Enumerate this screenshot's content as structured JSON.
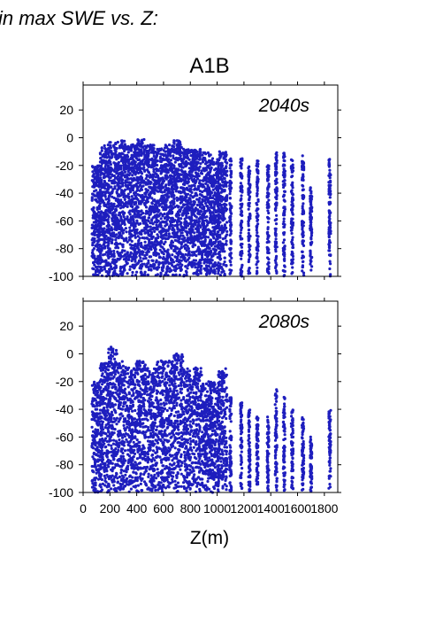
{
  "header": {
    "text": "in max SWE vs. Z:"
  },
  "scenario": "A1B",
  "xlabel": "Z(m)",
  "colors": {
    "points": "#1e1ebe",
    "label": "#1e1ebe",
    "axes": "#000000"
  },
  "chart_data": [
    {
      "type": "scatter",
      "label": "2040s",
      "xlim": [
        0,
        1900
      ],
      "ylim": [
        -100,
        38
      ],
      "yticks": [
        20,
        0,
        -20,
        -40,
        -60,
        -80,
        -100
      ],
      "xtick_values": [
        0,
        200,
        400,
        600,
        800,
        1000,
        1200,
        1400,
        1600,
        1800
      ],
      "x_cluster_centers": [
        100,
        160,
        220,
        290,
        360,
        430,
        500,
        570,
        640,
        710,
        780,
        850,
        920,
        980,
        1040,
        1100,
        1180,
        1240,
        1300,
        1380,
        1440,
        1500,
        1560,
        1640,
        1700,
        1840
      ],
      "upper_envelope": [
        -20,
        -5,
        -3,
        -2,
        -5,
        -1,
        -5,
        -8,
        -5,
        -2,
        -8,
        -8,
        -10,
        -15,
        -10,
        -15,
        -15,
        -20,
        -15,
        -20,
        -10,
        -10,
        -15,
        -10,
        -35,
        -15
      ],
      "lower_bound": -100,
      "n_points_approx": 5000
    },
    {
      "type": "scatter",
      "label": "2080s",
      "xlim": [
        0,
        1900
      ],
      "ylim": [
        -100,
        38
      ],
      "yticks": [
        20,
        0,
        -20,
        -40,
        -60,
        -80,
        -100
      ],
      "xtick_labels": [
        "0",
        "200",
        "400",
        "600",
        "800",
        "1000",
        "1200",
        "1400",
        "1600",
        "1800"
      ],
      "xtick_values": [
        0,
        200,
        400,
        600,
        800,
        1000,
        1200,
        1400,
        1600,
        1800
      ],
      "x_cluster_centers": [
        100,
        160,
        220,
        290,
        360,
        430,
        500,
        570,
        640,
        710,
        780,
        850,
        920,
        980,
        1040,
        1100,
        1180,
        1240,
        1300,
        1380,
        1440,
        1500,
        1560,
        1640,
        1700,
        1840
      ],
      "upper_envelope": [
        -20,
        -5,
        6,
        -5,
        -10,
        -5,
        -10,
        -5,
        -5,
        0,
        -10,
        -10,
        -20,
        -20,
        -10,
        -30,
        -35,
        -40,
        -45,
        -45,
        -25,
        -30,
        -40,
        -45,
        -60,
        -40
      ],
      "lower_bound": -100,
      "n_points_approx": 4000
    }
  ]
}
